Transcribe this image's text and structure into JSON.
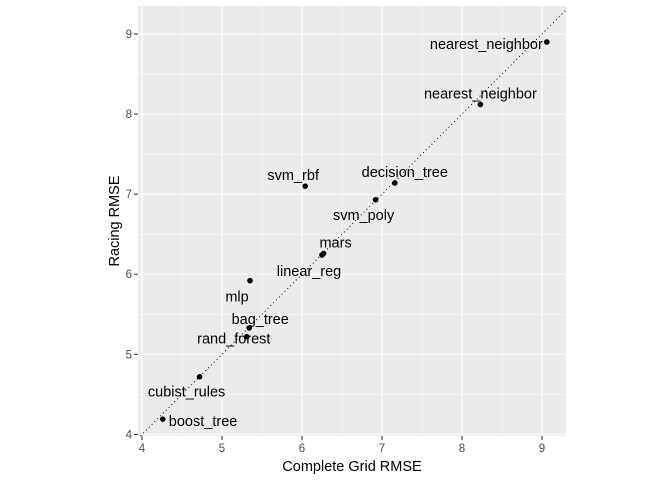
{
  "chart_data": {
    "type": "scatter",
    "title": "",
    "xlabel": "Complete Grid RMSE",
    "ylabel": "Racing RMSE",
    "xlim": [
      3.95,
      9.3
    ],
    "ylim": [
      3.98,
      9.35
    ],
    "x_ticks": [
      4,
      5,
      6,
      7,
      8,
      9
    ],
    "y_ticks": [
      4,
      5,
      6,
      7,
      8,
      9
    ],
    "grid": true,
    "reference_line": "y = x",
    "points": [
      {
        "label": "nearest_neighbor",
        "x": 9.06,
        "y": 8.9
      },
      {
        "label": "nearest_neighbor",
        "x": 8.23,
        "y": 8.12
      },
      {
        "label": "decision_tree",
        "x": 7.16,
        "y": 7.14
      },
      {
        "label": "svm_rbf",
        "x": 6.04,
        "y": 7.1
      },
      {
        "label": "svm_poly",
        "x": 6.92,
        "y": 6.93
      },
      {
        "label": "mars",
        "x": 6.27,
        "y": 6.26
      },
      {
        "label": "linear_reg",
        "x": 6.25,
        "y": 6.24
      },
      {
        "label": "mlp",
        "x": 5.35,
        "y": 5.92
      },
      {
        "label": "bag_tree",
        "x": 5.34,
        "y": 5.33
      },
      {
        "label": "rand_forest",
        "x": 5.31,
        "y": 5.22
      },
      {
        "label": "cubist_rules",
        "x": 4.72,
        "y": 4.72
      },
      {
        "label": "boost_tree",
        "x": 4.26,
        "y": 4.19
      }
    ]
  }
}
